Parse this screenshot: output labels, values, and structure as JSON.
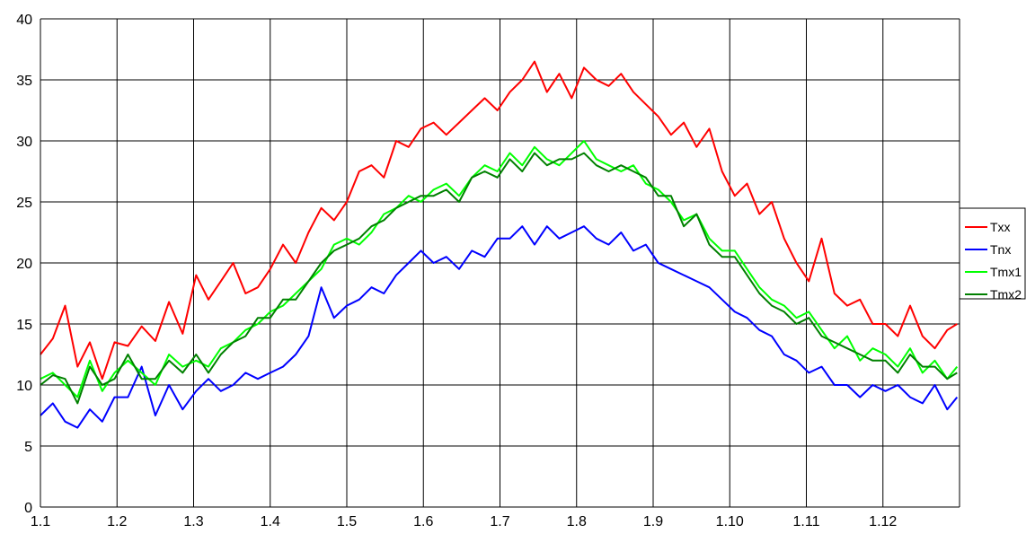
{
  "chart_data": {
    "type": "line",
    "title": "",
    "xlabel": "",
    "ylabel": "",
    "ylim": [
      0,
      40
    ],
    "yticks": [
      "0",
      "5",
      "10",
      "15",
      "20",
      "25",
      "30",
      "35",
      "40"
    ],
    "xticks": [
      "1.1",
      "1.2",
      "1.3",
      "1.4",
      "1.5",
      "1.6",
      "1.7",
      "1.8",
      "1.9",
      "1.10",
      "1.11",
      "1.12"
    ],
    "grid": true,
    "legend_position": "right",
    "x": [
      "1.1",
      "6.1",
      "11.1",
      "16.1",
      "21.1",
      "26.1",
      "31.1",
      "5.2",
      "10.2",
      "15.2",
      "20.2",
      "25.2",
      "2.3",
      "7.3",
      "12.3",
      "17.3",
      "22.3",
      "27.3",
      "1.4",
      "6.4",
      "11.4",
      "16.4",
      "21.4",
      "26.4",
      "1.5",
      "6.5",
      "11.5",
      "16.5",
      "21.5",
      "26.5",
      "31.5",
      "5.6",
      "10.6",
      "15.6",
      "20.6",
      "25.6",
      "30.6",
      "5.7",
      "10.7",
      "15.7",
      "20.7",
      "25.7",
      "30.7",
      "4.8",
      "9.8",
      "14.8",
      "19.8",
      "24.8",
      "29.8",
      "3.9",
      "8.9",
      "13.9",
      "18.9",
      "23.9",
      "28.9",
      "3.10",
      "8.10",
      "13.10",
      "18.10",
      "23.10",
      "28.10",
      "2.11",
      "7.11",
      "12.11",
      "17.11",
      "22.11",
      "27.11",
      "2.12",
      "7.12",
      "12.12",
      "17.12",
      "22.12",
      "27.12",
      "31.12"
    ],
    "series": [
      {
        "name": "Txx",
        "color": "#ff0000",
        "values": [
          12.5,
          13.8,
          16.5,
          11.5,
          13.5,
          10.5,
          13.5,
          13.2,
          14.8,
          13.6,
          16.8,
          14.2,
          19,
          17,
          18.5,
          20,
          17.5,
          18,
          19.5,
          21.5,
          20,
          22.5,
          24.5,
          23.5,
          25,
          27.5,
          28,
          27,
          30,
          29.5,
          31,
          31.5,
          30.5,
          31.5,
          32.5,
          33.5,
          32.5,
          34,
          35,
          36.5,
          34,
          35.5,
          33.5,
          36,
          35,
          34.5,
          35.5,
          34,
          33,
          32,
          30.5,
          31.5,
          29.5,
          31,
          27.5,
          25.5,
          26.5,
          24,
          25,
          22,
          20,
          18.5,
          22,
          17.5,
          16.5,
          17,
          15,
          15,
          14,
          16.5,
          14,
          13,
          14.5,
          15
        ]
      },
      {
        "name": "Tnx",
        "color": "#0000ff",
        "values": [
          7.5,
          8.5,
          7,
          6.5,
          8,
          7,
          9,
          9,
          11.5,
          7.5,
          10,
          8,
          9.5,
          10.5,
          9.5,
          10,
          11,
          10.5,
          11,
          11.5,
          12.5,
          14,
          18,
          15.5,
          16.5,
          17,
          18,
          17.5,
          19,
          20,
          21,
          20,
          20.5,
          19.5,
          21,
          20.5,
          22,
          22,
          23,
          21.5,
          23,
          22,
          22.5,
          23,
          22,
          21.5,
          22.5,
          21,
          21.5,
          20,
          19.5,
          19,
          18.5,
          18,
          17,
          16,
          15.5,
          14.5,
          14,
          12.5,
          12,
          11,
          11.5,
          10,
          10,
          9,
          10,
          9.5,
          10,
          9,
          8.5,
          10,
          8,
          9
        ]
      },
      {
        "name": "Tmx1",
        "color": "#00ff00",
        "values": [
          10.5,
          11,
          10,
          9,
          12,
          9.5,
          11,
          12,
          11,
          10,
          12.5,
          11.5,
          12,
          11.5,
          13,
          13.5,
          14.5,
          15,
          16,
          16.5,
          17.5,
          18.5,
          19.5,
          21.5,
          22,
          21.5,
          22.5,
          24,
          24.5,
          25.5,
          25,
          26,
          26.5,
          25.5,
          27,
          28,
          27.5,
          29,
          28,
          29.5,
          28.5,
          28,
          29,
          30,
          28.5,
          28,
          27.5,
          28,
          26.5,
          26,
          25,
          23.5,
          24,
          22,
          21,
          21,
          19.5,
          18,
          17,
          16.5,
          15.5,
          16,
          14.5,
          13,
          14,
          12,
          13,
          12.5,
          11.5,
          13,
          11,
          12,
          10.5,
          11.5
        ]
      },
      {
        "name": "Tmx2",
        "color": "#008000",
        "values": [
          10,
          10.8,
          10.5,
          8.5,
          11.5,
          10,
          10.5,
          12.5,
          10.5,
          10.5,
          12,
          11,
          12.5,
          11,
          12.5,
          13.5,
          14,
          15.5,
          15.5,
          17,
          17,
          18.5,
          20,
          21,
          21.5,
          22,
          23,
          23.5,
          24.5,
          25,
          25.5,
          25.5,
          26,
          25,
          27,
          27.5,
          27,
          28.5,
          27.5,
          29,
          28,
          28.5,
          28.5,
          29,
          28,
          27.5,
          28,
          27.5,
          27,
          25.5,
          25.5,
          23,
          24,
          21.5,
          20.5,
          20.5,
          19,
          17.5,
          16.5,
          16,
          15,
          15.5,
          14,
          13.5,
          13,
          12.5,
          12,
          12,
          11,
          12.5,
          11.5,
          11.5,
          10.5,
          11
        ]
      }
    ]
  }
}
